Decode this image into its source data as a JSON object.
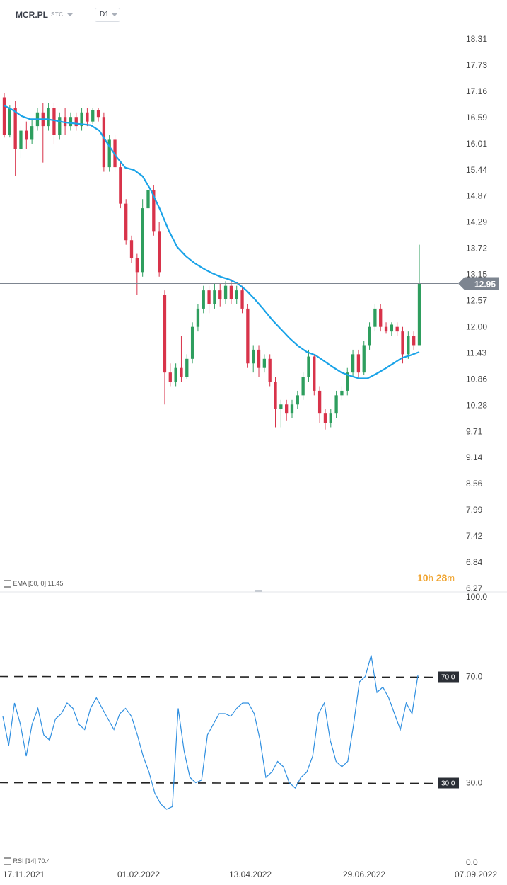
{
  "header": {
    "symbol": "MCR.PL",
    "stc_label": "STC",
    "timeframe": "D1"
  },
  "ema_label": "EMA [50, 0] 11.45",
  "rsi_label": "RSI [14] 70.4",
  "countdown": {
    "hours": "10",
    "h_unit": "h",
    "minutes": "28",
    "m_unit": "m"
  },
  "colors": {
    "up": "#2e9e5e",
    "down": "#d8334a",
    "ema": "#1aa3e8",
    "rsi": "#2f8fe0",
    "price_line": "#7d8590",
    "price_badge": "#7d8590"
  },
  "chart_data": [
    {
      "type": "candlestick",
      "title": "",
      "ylim": [
        6.27,
        18.31
      ],
      "y_ticks": [
        "18.31",
        "17.73",
        "17.16",
        "16.59",
        "16.01",
        "15.44",
        "14.87",
        "14.29",
        "13.72",
        "13.15",
        "12.57",
        "12.00",
        "11.43",
        "10.86",
        "10.28",
        "9.71",
        "9.14",
        "8.56",
        "7.99",
        "7.42",
        "6.84",
        "6.27"
      ],
      "current_price": 12.95,
      "current_price_label": "12.95",
      "x_ticks": [
        "17.11.2021",
        "01.02.2022",
        "13.04.2022",
        "29.06.2022",
        "07.09.2022"
      ],
      "series": [
        {
          "name": "EMA [50, 0]",
          "values": [
            16.85,
            16.75,
            16.62,
            16.55,
            16.55,
            16.55,
            16.52,
            16.48,
            16.46,
            16.44,
            16.42,
            16.3,
            16.0,
            15.72,
            15.49,
            15.44,
            15.3,
            14.98,
            14.58,
            14.12,
            13.75,
            13.55,
            13.4,
            13.28,
            13.18,
            13.1,
            13.04,
            12.95,
            12.8,
            12.6,
            12.38,
            12.15,
            11.95,
            11.75,
            11.58,
            11.45,
            11.38,
            11.25,
            11.12,
            11.0,
            10.93,
            10.87,
            10.87,
            10.97,
            11.08,
            11.2,
            11.32,
            11.38,
            11.45
          ]
        }
      ],
      "candles": [
        [
          17.03,
          16.2,
          17.12,
          16.15
        ],
        [
          16.2,
          16.8,
          16.85,
          16.15
        ],
        [
          16.8,
          15.9,
          16.95,
          15.3
        ],
        [
          15.9,
          16.3,
          16.4,
          15.7
        ],
        [
          16.3,
          16.1,
          16.5,
          15.9
        ],
        [
          16.1,
          16.4,
          16.55,
          16.0
        ],
        [
          16.4,
          16.7,
          16.8,
          16.3
        ],
        [
          16.7,
          16.4,
          16.9,
          15.6
        ],
        [
          16.4,
          16.8,
          16.9,
          16.3
        ],
        [
          16.8,
          16.2,
          16.9,
          16.0
        ],
        [
          16.2,
          16.6,
          16.7,
          16.1
        ],
        [
          16.6,
          16.4,
          16.8,
          16.2
        ],
        [
          16.4,
          16.6,
          16.7,
          16.3
        ],
        [
          16.6,
          16.4,
          16.7,
          16.3
        ],
        [
          16.4,
          16.7,
          16.8,
          16.3
        ],
        [
          16.7,
          16.5,
          16.8,
          16.4
        ],
        [
          16.5,
          16.75,
          16.8,
          16.45
        ],
        [
          16.75,
          16.6,
          16.8,
          16.5
        ],
        [
          16.6,
          15.5,
          16.7,
          15.4
        ],
        [
          15.5,
          16.1,
          16.2,
          15.4
        ],
        [
          16.1,
          15.5,
          16.2,
          15.4
        ],
        [
          15.5,
          14.7,
          15.6,
          14.6
        ],
        [
          14.7,
          13.9,
          14.8,
          13.8
        ],
        [
          13.9,
          13.5,
          14.0,
          13.4
        ],
        [
          13.5,
          13.2,
          13.6,
          12.7
        ],
        [
          13.2,
          14.6,
          14.8,
          13.1
        ],
        [
          14.6,
          15.0,
          15.4,
          14.5
        ],
        [
          15.0,
          14.1,
          15.1,
          14.0
        ],
        [
          14.1,
          13.2,
          14.3,
          13.1
        ],
        [
          12.7,
          11.0,
          12.8,
          10.3
        ],
        [
          11.0,
          10.8,
          11.2,
          10.7
        ],
        [
          10.8,
          11.1,
          11.2,
          10.7
        ],
        [
          11.1,
          10.9,
          11.8,
          10.8
        ],
        [
          10.9,
          11.3,
          11.4,
          10.85
        ],
        [
          11.3,
          12.0,
          12.1,
          11.2
        ],
        [
          12.0,
          12.4,
          12.5,
          11.9
        ],
        [
          12.4,
          12.8,
          12.9,
          12.3
        ],
        [
          12.8,
          12.5,
          12.9,
          12.3
        ],
        [
          12.5,
          12.8,
          12.95,
          12.4
        ],
        [
          12.8,
          12.6,
          12.95,
          12.45
        ],
        [
          12.6,
          12.9,
          13.0,
          12.5
        ],
        [
          12.9,
          12.6,
          13.05,
          12.5
        ],
        [
          12.6,
          12.8,
          12.9,
          12.5
        ],
        [
          12.8,
          12.4,
          12.9,
          12.3
        ],
        [
          12.4,
          11.2,
          12.5,
          11.1
        ],
        [
          11.2,
          11.5,
          11.6,
          11.0
        ],
        [
          11.5,
          11.1,
          11.6,
          10.9
        ],
        [
          11.1,
          11.3,
          11.4,
          11.0
        ],
        [
          11.3,
          10.8,
          11.4,
          10.7
        ],
        [
          10.8,
          10.2,
          10.9,
          9.8
        ],
        [
          10.2,
          10.3,
          10.4,
          9.8
        ],
        [
          10.3,
          10.1,
          10.4,
          9.95
        ],
        [
          10.1,
          10.3,
          10.4,
          10.0
        ],
        [
          10.3,
          10.5,
          10.6,
          10.2
        ],
        [
          10.5,
          10.9,
          11.0,
          10.4
        ],
        [
          10.9,
          11.35,
          11.5,
          10.8
        ],
        [
          11.35,
          10.6,
          11.4,
          10.5
        ],
        [
          10.6,
          10.1,
          10.7,
          9.9
        ],
        [
          10.1,
          9.9,
          10.2,
          9.75
        ],
        [
          9.9,
          10.1,
          10.2,
          9.8
        ],
        [
          10.1,
          10.5,
          10.6,
          10.0
        ],
        [
          10.5,
          10.6,
          10.7,
          10.4
        ],
        [
          10.6,
          11.0,
          11.1,
          10.5
        ],
        [
          11.0,
          11.4,
          11.5,
          10.9
        ],
        [
          11.4,
          11.0,
          11.5,
          10.9
        ],
        [
          11.0,
          11.6,
          11.7,
          10.95
        ],
        [
          11.6,
          12.0,
          12.1,
          11.5
        ],
        [
          12.0,
          12.4,
          12.5,
          11.9
        ],
        [
          12.4,
          12.0,
          12.5,
          11.9
        ],
        [
          12.0,
          11.9,
          12.1,
          11.85
        ],
        [
          11.9,
          12.05,
          12.1,
          11.8
        ],
        [
          12.0,
          11.9,
          12.1,
          11.8
        ],
        [
          11.9,
          11.4,
          12.0,
          11.2
        ],
        [
          11.4,
          11.8,
          11.9,
          11.3
        ],
        [
          11.8,
          11.6,
          11.9,
          11.5
        ],
        [
          11.6,
          12.95,
          13.8,
          11.6
        ]
      ]
    },
    {
      "type": "line",
      "title": "",
      "ylim": [
        0,
        100
      ],
      "y_ticks": [
        "100.0",
        "70.0",
        "30.0",
        "0.0"
      ],
      "levels": [
        70.0,
        30.0
      ],
      "level_labels": [
        "70.0",
        "30.0"
      ],
      "series": [
        {
          "name": "RSI [14]",
          "values": [
            55,
            44,
            60,
            52,
            40,
            52,
            58,
            48,
            46,
            54,
            56,
            60,
            58,
            52,
            50,
            58,
            62,
            58,
            54,
            50,
            56,
            58,
            55,
            48,
            40,
            34,
            26,
            22,
            20,
            21,
            58,
            42,
            32,
            30,
            31,
            48,
            52,
            56,
            56,
            55,
            58,
            60,
            60,
            56,
            46,
            32,
            34,
            38,
            36,
            30,
            28,
            32,
            34,
            40,
            56,
            60,
            46,
            38,
            36,
            38,
            52,
            68,
            70,
            78,
            64,
            66,
            62,
            56,
            50,
            60,
            56,
            70.4
          ]
        }
      ]
    }
  ]
}
